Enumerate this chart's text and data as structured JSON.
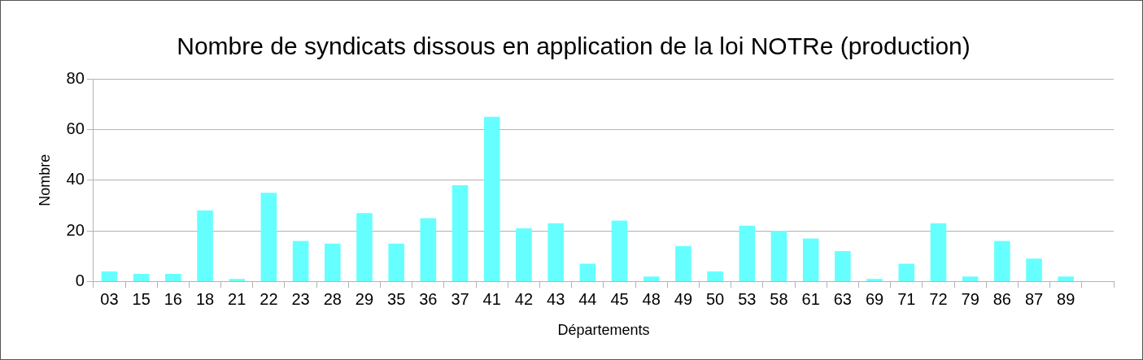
{
  "chart_data": {
    "type": "bar",
    "title": "Nombre de syndicats dissous en application de la loi NOTRe (production)",
    "xlabel": "Départements",
    "ylabel": "Nombre",
    "categories": [
      "03",
      "15",
      "16",
      "18",
      "21",
      "22",
      "23",
      "28",
      "29",
      "35",
      "36",
      "37",
      "41",
      "42",
      "43",
      "44",
      "45",
      "48",
      "49",
      "50",
      "53",
      "58",
      "61",
      "63",
      "69",
      "71",
      "72",
      "79",
      "86",
      "87",
      "89",
      null
    ],
    "values": [
      4,
      3,
      3,
      28,
      1,
      35,
      16,
      15,
      27,
      15,
      25,
      38,
      65,
      21,
      23,
      7,
      24,
      2,
      14,
      4,
      22,
      20,
      17,
      12,
      1,
      7,
      23,
      2,
      16,
      9,
      2,
      null
    ],
    "color": "#66ffff",
    "ylim": [
      0,
      80
    ],
    "yticks": [
      0,
      20,
      40,
      60,
      80
    ],
    "grid": "y",
    "legend": false
  }
}
